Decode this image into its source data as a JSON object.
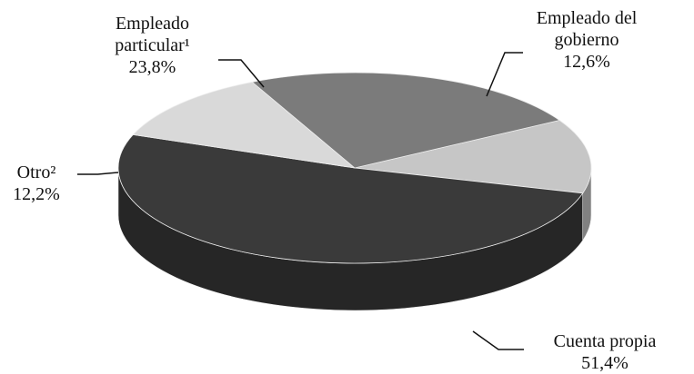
{
  "chart_data": {
    "type": "pie",
    "categories": [
      "Empleado del gobierno",
      "Cuenta propia",
      "Otro²",
      "Empleado particular¹"
    ],
    "values": [
      12.6,
      51.4,
      12.2,
      23.8
    ],
    "value_labels": [
      "12,6%",
      "51,4%",
      "12,2%",
      "23,8%"
    ],
    "colors": [
      "#c6c6c6",
      "#3a3a3a",
      "#d9d9d9",
      "#7b7b7b"
    ]
  }
}
